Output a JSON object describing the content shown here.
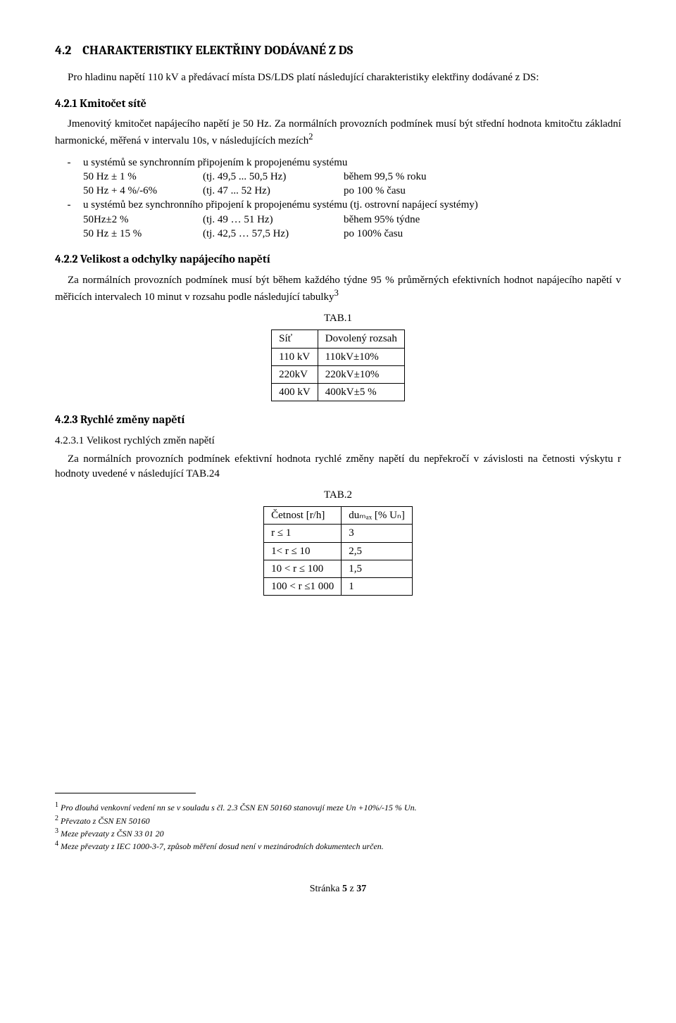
{
  "section": {
    "number": "4.2",
    "title": "CHARAKTERISTIKY ELEKTŘINY DODÁVANÉ Z DS",
    "intro": "Pro hladinu napětí 110 kV a předávací místa DS/LDS platí následující charakteristiky elektřiny dodávané z DS:"
  },
  "s421": {
    "heading": "4.2.1 Kmitočet sítě",
    "p1": "Jmenovitý kmitočet napájecího napětí je 50 Hz. Za normálních provozních podmínek musí být střední hodnota kmitočtu základní harmonické, měřená v intervalu 10s, v následujících mezích",
    "sup1": "2",
    "bullet1": "u systémů se synchronním připojením k propojenému systému",
    "rows1": [
      {
        "a": "50 Hz ± 1 %",
        "b": "(tj. 49,5 ... 50,5 Hz)",
        "c": "během 99,5 % roku"
      },
      {
        "a": "50 Hz + 4 %/-6%",
        "b": "(tj. 47 ... 52 Hz)",
        "c": "po 100 % času"
      }
    ],
    "bullet2": "u systémů bez synchronního připojení k propojenému systému (tj. ostrovní napájecí systémy)",
    "rows2": [
      {
        "a": "50Hz±2 %",
        "b": "(tj. 49 … 51 Hz)",
        "c": "během 95% týdne"
      },
      {
        "a": "50 Hz ± 15 %",
        "b": "(tj. 42,5 … 57,5 Hz)",
        "c": "po 100% času"
      }
    ]
  },
  "s422": {
    "heading": "4.2.2 Velikost a odchylky napájecího napětí",
    "p": "Za normálních provozních podmínek musí být během každého týdne 95 % průměrných efektivních hodnot napájecího napětí v měřicích intervalech 10 minut v rozsahu podle následující tabulky",
    "sup": "3",
    "tab_label": "TAB.1",
    "table": {
      "cols": [
        "Síť",
        "Dovolený rozsah"
      ],
      "rows": [
        [
          "110 kV",
          "110kV±10%"
        ],
        [
          "220kV",
          "220kV±10%"
        ],
        [
          "400 kV",
          "400kV±5 %"
        ]
      ]
    }
  },
  "s423": {
    "heading": "4.2.3 Rychlé změny napětí",
    "sub_heading": "4.2.3.1 Velikost rychlých změn napětí",
    "p": "Za normálních provozních podmínek efektivní hodnota rychlé změny napětí du nepřekročí v závislosti na četnosti výskytu r hodnoty uvedené v následující TAB.24",
    "tab_label": "TAB.2",
    "table": {
      "cols": [
        "Četnost [r/h]",
        "duₘₐₓ [% Uₙ]"
      ],
      "rows": [
        [
          "r ≤ 1",
          "3"
        ],
        [
          "1< r ≤ 10",
          "2,5"
        ],
        [
          "10 < r ≤ 100",
          "1,5"
        ],
        [
          "100 < r ≤1 000",
          "1"
        ]
      ]
    }
  },
  "footnotes": [
    {
      "n": "1",
      "text": "Pro dlouhá venkovní vedení nn se v souladu s čl. 2.3 ČSN EN 50160 stanovují meze Un +10%/-15 % Un."
    },
    {
      "n": "2",
      "text": "Převzato z ČSN EN 50160"
    },
    {
      "n": "3",
      "text": "Meze převzaty z ČSN 33 01 20"
    },
    {
      "n": "4",
      "text": "Meze převzaty z IEC 1000-3-7, způsob měření dosud není v mezinárodních dokumentech určen."
    }
  ],
  "pager": {
    "label": "Stránka ",
    "current": "5",
    "of_word": " z ",
    "total": "37"
  }
}
